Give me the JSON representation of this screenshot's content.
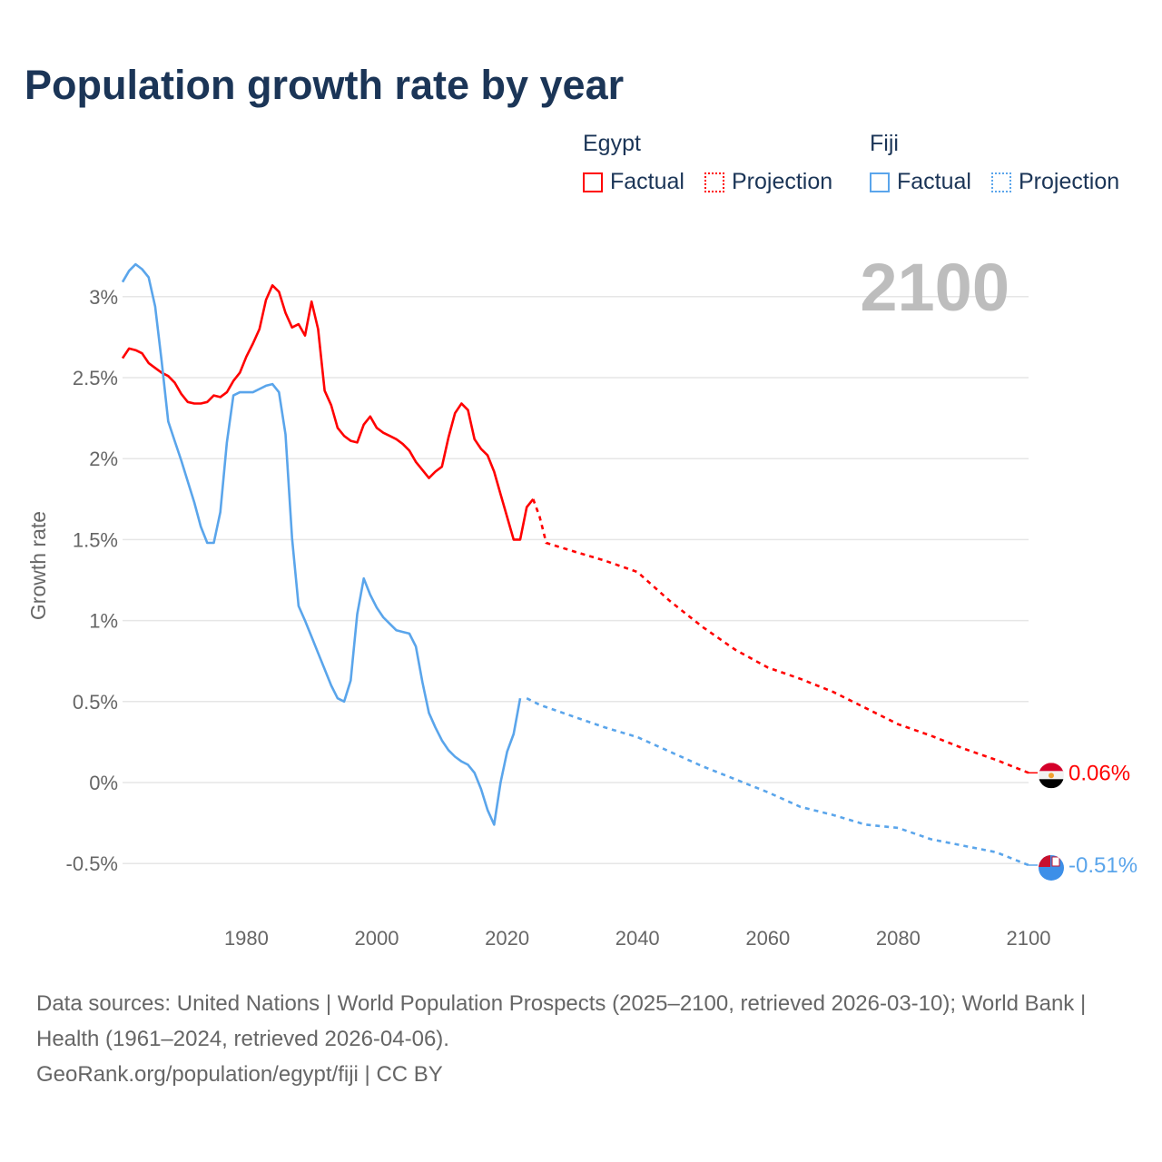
{
  "title": "Population growth rate by year",
  "legend": {
    "groups": [
      {
        "country": "Egypt",
        "factual": "Factual",
        "projection": "Projection",
        "color": "#ff0000"
      },
      {
        "country": "Fiji",
        "factual": "Factual",
        "projection": "Projection",
        "color": "#5aa5eb"
      }
    ]
  },
  "chart_data": {
    "type": "line",
    "title": "Population growth rate by year",
    "xlabel": "",
    "ylabel": "Growth rate",
    "xlim": [
      1961,
      2100
    ],
    "ylim": [
      -0.6,
      3.3
    ],
    "x_ticks": [
      1980,
      2000,
      2020,
      2040,
      2060,
      2080,
      2100
    ],
    "x_tick_labels": [
      "1980",
      "2000",
      "2020",
      "2040",
      "2060",
      "2080",
      "2100"
    ],
    "y_ticks": [
      -0.5,
      0,
      0.5,
      1,
      1.5,
      2,
      2.5,
      3
    ],
    "y_tick_labels": [
      "-0.5%",
      "0%",
      "0.5%",
      "1%",
      "1.5%",
      "2%",
      "2.5%",
      "3%"
    ],
    "grid": true,
    "year_label": "2100",
    "series": [
      {
        "name": "Egypt",
        "kind": "Factual",
        "color": "#ff0000",
        "start_year": 1961,
        "values": [
          2.62,
          2.68,
          2.67,
          2.65,
          2.59,
          2.56,
          2.53,
          2.51,
          2.47,
          2.4,
          2.35,
          2.34,
          2.34,
          2.35,
          2.39,
          2.38,
          2.41,
          2.48,
          2.53,
          2.63,
          2.71,
          2.8,
          2.98,
          3.07,
          3.03,
          2.9,
          2.81,
          2.83,
          2.76,
          2.97,
          2.8,
          2.42,
          2.33,
          2.19,
          2.14,
          2.11,
          2.1,
          2.21,
          2.26,
          2.19,
          2.16,
          2.14,
          2.12,
          2.09,
          2.05,
          1.98,
          1.93,
          1.88,
          1.92,
          1.95,
          2.13,
          2.28,
          2.34,
          2.3,
          2.12,
          2.06,
          2.02,
          1.92,
          1.78,
          1.64,
          1.5,
          1.5,
          1.7,
          1.75
        ]
      },
      {
        "name": "Egypt",
        "kind": "Projection",
        "color": "#ff0000",
        "x": [
          2024,
          2025,
          2026,
          2030,
          2035,
          2040,
          2045,
          2050,
          2055,
          2060,
          2065,
          2070,
          2075,
          2080,
          2085,
          2090,
          2095,
          2100
        ],
        "values": [
          1.75,
          1.64,
          1.48,
          1.43,
          1.37,
          1.3,
          1.12,
          0.96,
          0.82,
          0.71,
          0.64,
          0.56,
          0.46,
          0.36,
          0.29,
          0.21,
          0.14,
          0.06
        ]
      },
      {
        "name": "Fiji",
        "kind": "Factual",
        "color": "#5aa5eb",
        "start_year": 1961,
        "values": [
          3.09,
          3.16,
          3.2,
          3.17,
          3.12,
          2.94,
          2.6,
          2.23,
          2.11,
          1.99,
          1.86,
          1.73,
          1.58,
          1.48,
          1.48,
          1.67,
          2.1,
          2.39,
          2.41,
          2.41,
          2.41,
          2.43,
          2.45,
          2.46,
          2.41,
          2.15,
          1.51,
          1.09,
          1.0,
          0.9,
          0.8,
          0.7,
          0.6,
          0.52,
          0.5,
          0.63,
          1.04,
          1.26,
          1.16,
          1.08,
          1.02,
          0.98,
          0.94,
          0.93,
          0.92,
          0.84,
          0.62,
          0.43,
          0.34,
          0.26,
          0.2,
          0.16,
          0.13,
          0.11,
          0.06,
          -0.04,
          -0.17,
          -0.26,
          0.0,
          0.19,
          0.3,
          0.52
        ]
      },
      {
        "name": "Fiji",
        "kind": "Projection",
        "color": "#5aa5eb",
        "x": [
          2023,
          2025,
          2030,
          2035,
          2040,
          2045,
          2050,
          2055,
          2060,
          2065,
          2070,
          2075,
          2080,
          2085,
          2090,
          2095,
          2100
        ],
        "values": [
          0.52,
          0.48,
          0.41,
          0.34,
          0.28,
          0.19,
          0.1,
          0.02,
          -0.06,
          -0.15,
          -0.2,
          -0.26,
          -0.28,
          -0.35,
          -0.39,
          -0.43,
          -0.51
        ]
      }
    ],
    "end_labels": [
      {
        "country": "Egypt",
        "value": 0.06,
        "text": "0.06%",
        "color": "#ff0000"
      },
      {
        "country": "Fiji",
        "value": -0.51,
        "text": "-0.51%",
        "color": "#5aa5eb"
      }
    ]
  },
  "footer": {
    "sources": "Data sources: United Nations | World Population Prospects (2025–2100, retrieved 2026-03-10); World Bank | Health (1961–2024, retrieved 2026-04-06).",
    "credit": "GeoRank.org/population/egypt/fiji | CC BY"
  }
}
